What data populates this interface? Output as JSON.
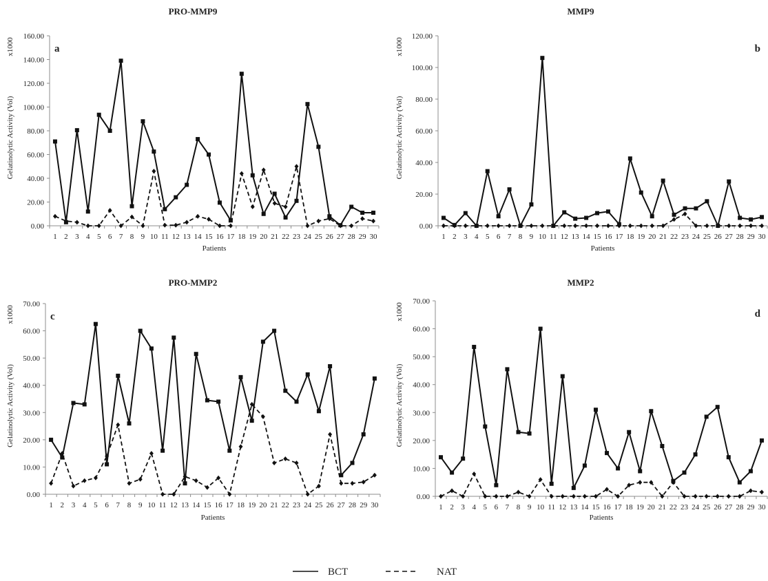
{
  "legend": {
    "solid_label": "BCT",
    "dashed_label": "NAT"
  },
  "colors": {
    "line": "#111111",
    "axis": "#8c8c8c"
  },
  "chart_data": [
    {
      "type": "line",
      "title": "PRO-MMP9",
      "panel_label": "a",
      "multiplier_label": "x1000",
      "xlabel": "Patients",
      "ylabel": "Gelatinolytic Activity (Vol)",
      "ylim": [
        0,
        160
      ],
      "yticks": [
        "0.00",
        "20.00",
        "40.00",
        "60.00",
        "80.00",
        "100.00",
        "120.00",
        "140.00",
        "160.00"
      ],
      "categories": [
        "1",
        "2",
        "3",
        "4",
        "5",
        "6",
        "7",
        "8",
        "9",
        "10",
        "11",
        "12",
        "13",
        "14",
        "15",
        "16",
        "17",
        "18",
        "19",
        "20",
        "21",
        "22",
        "23",
        "24",
        "25",
        "26",
        "27",
        "28",
        "29",
        "30"
      ],
      "series": [
        {
          "name": "BCT",
          "style": "solid",
          "marker": "square",
          "values": [
            71,
            3,
            80.5,
            12,
            93.5,
            80,
            139,
            16.5,
            88,
            62.5,
            14,
            24,
            34.5,
            73,
            60,
            19.5,
            4.5,
            128,
            42.5,
            10,
            27,
            7,
            21,
            102.5,
            66.5,
            8,
            0.5,
            16,
            11,
            11
          ]
        },
        {
          "name": "NAT",
          "style": "dashed",
          "marker": "diamond",
          "values": [
            8,
            4,
            3,
            0,
            0,
            13,
            0,
            7.5,
            0,
            46,
            0.5,
            0.5,
            3,
            8,
            5.5,
            0,
            0,
            44,
            16,
            47,
            19,
            16,
            50,
            0,
            4,
            6,
            0,
            0,
            6,
            4
          ]
        }
      ]
    },
    {
      "type": "line",
      "title": "MMP9",
      "panel_label": "b",
      "multiplier_label": "x1000",
      "xlabel": "Patients",
      "ylabel": "Gelatinolytic Activity (Vol)",
      "ylim": [
        0,
        120
      ],
      "yticks": [
        "0.00",
        "20.00",
        "40.00",
        "60.00",
        "80.00",
        "100.00",
        "120.00"
      ],
      "categories": [
        "1",
        "2",
        "3",
        "4",
        "5",
        "6",
        "7",
        "8",
        "9",
        "10",
        "11",
        "12",
        "13",
        "14",
        "15",
        "16",
        "17",
        "18",
        "19",
        "20",
        "21",
        "22",
        "23",
        "24",
        "25",
        "26",
        "27",
        "28",
        "29",
        "30"
      ],
      "series": [
        {
          "name": "BCT",
          "style": "solid",
          "marker": "square",
          "values": [
            5,
            0.5,
            8,
            0,
            34.5,
            6,
            23,
            0,
            13.5,
            106,
            0,
            8.5,
            4.5,
            5,
            8,
            9,
            1,
            42.5,
            21,
            6,
            28.5,
            7,
            11,
            11,
            15.5,
            0,
            28,
            5,
            4,
            5.5
          ]
        },
        {
          "name": "NAT",
          "style": "dashed",
          "marker": "diamond",
          "values": [
            0,
            0,
            0,
            0,
            0,
            0,
            0,
            0,
            0,
            0,
            0,
            0,
            0,
            0,
            0,
            0,
            0,
            0,
            0,
            0,
            0,
            4,
            7.5,
            0,
            0,
            0,
            0,
            0,
            0,
            0
          ]
        }
      ]
    },
    {
      "type": "line",
      "title": "PRO-MMP2",
      "panel_label": "c",
      "multiplier_label": "x1000",
      "xlabel": "Patients",
      "ylabel": "Gelatinolytic Activity (Vol)",
      "ylim": [
        0,
        70
      ],
      "yticks": [
        "0.00",
        "10.00",
        "20.00",
        "30.00",
        "40.00",
        "50.00",
        "60.00",
        "70.00"
      ],
      "categories": [
        "1",
        "2",
        "3",
        "4",
        "5",
        "6",
        "7",
        "8",
        "9",
        "10",
        "11",
        "12",
        "13",
        "14",
        "15",
        "16",
        "17",
        "18",
        "19",
        "20",
        "21",
        "22",
        "23",
        "24",
        "25",
        "26",
        "27",
        "28",
        "29",
        "30"
      ],
      "series": [
        {
          "name": "BCT",
          "style": "solid",
          "marker": "square",
          "values": [
            20,
            13.5,
            33.5,
            33,
            62.5,
            11,
            43.5,
            26,
            60,
            53.5,
            16,
            57.5,
            4,
            51.5,
            34.5,
            34,
            16,
            43,
            27,
            56,
            60,
            38,
            34,
            44,
            30.5,
            47,
            7,
            11.5,
            22,
            42.5
          ]
        },
        {
          "name": "NAT",
          "style": "dashed",
          "marker": "diamond",
          "values": [
            4,
            15,
            3,
            5,
            6,
            14,
            25.5,
            4,
            5.5,
            15,
            0,
            0,
            6.5,
            5,
            2.5,
            6,
            0,
            17.5,
            33,
            28.5,
            11.5,
            13,
            11.5,
            0,
            3,
            22,
            4,
            4,
            4.5,
            7
          ]
        }
      ]
    },
    {
      "type": "line",
      "title": "MMP2",
      "panel_label": "d",
      "multiplier_label": "x1000",
      "xlabel": "Patients",
      "ylabel": "Gelatinolytic Activity (Vol)",
      "ylim": [
        0,
        70
      ],
      "yticks": [
        "0.00",
        "10.00",
        "20.00",
        "30.00",
        "40.00",
        "50.00",
        "60.00",
        "70.00"
      ],
      "categories": [
        "1",
        "2",
        "3",
        "4",
        "5",
        "6",
        "7",
        "8",
        "9",
        "10",
        "11",
        "12",
        "13",
        "14",
        "15",
        "16",
        "17",
        "18",
        "19",
        "20",
        "21",
        "22",
        "23",
        "24",
        "25",
        "26",
        "27",
        "28",
        "29",
        "30"
      ],
      "series": [
        {
          "name": "BCT",
          "style": "solid",
          "marker": "square",
          "values": [
            14,
            8.5,
            13.5,
            53.5,
            25,
            4,
            45.5,
            23,
            22.5,
            60,
            4.5,
            43,
            3,
            11,
            31,
            15.5,
            10,
            23,
            9,
            30.5,
            18,
            5.5,
            8.5,
            15,
            28.5,
            32,
            14,
            5,
            9,
            20
          ]
        },
        {
          "name": "NAT",
          "style": "dashed",
          "marker": "diamond",
          "values": [
            0,
            2,
            0,
            8,
            0,
            0,
            0,
            1.5,
            0,
            6,
            0,
            0,
            0,
            0,
            0,
            2.5,
            0,
            4,
            5,
            5,
            0,
            5,
            0,
            0,
            0,
            0,
            0,
            0,
            2,
            1.5
          ]
        }
      ]
    }
  ]
}
